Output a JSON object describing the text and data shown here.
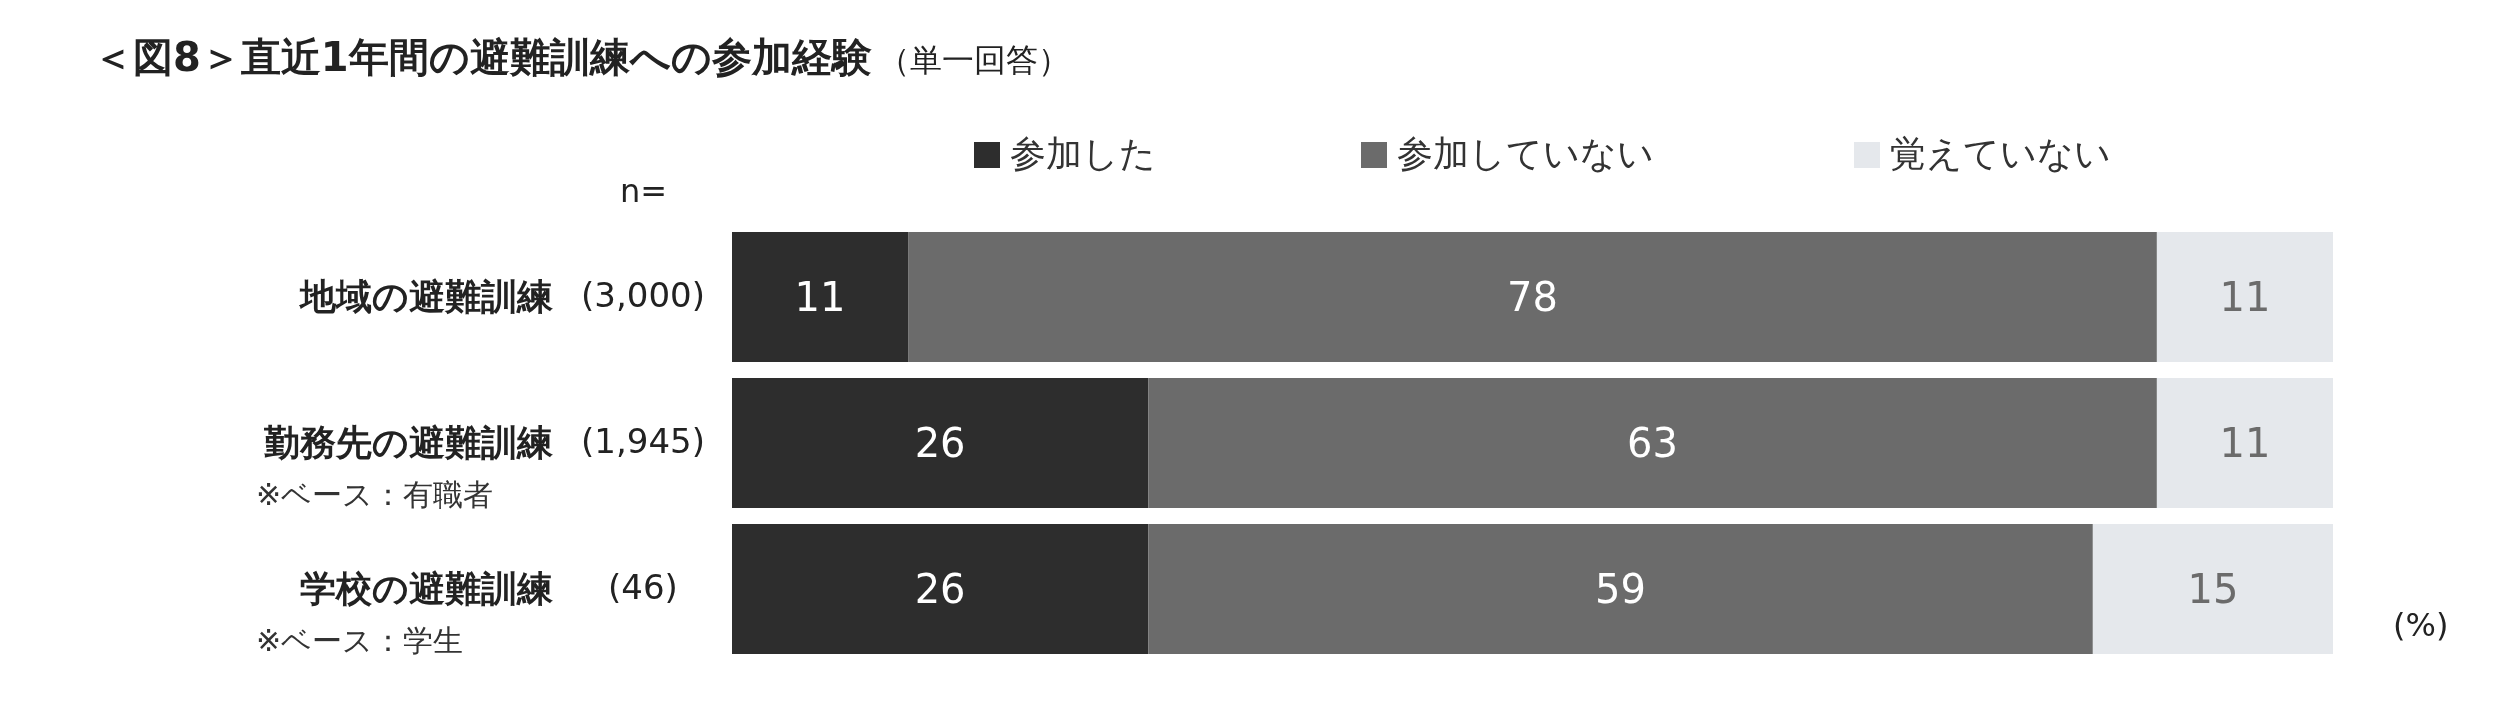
{
  "chart_data": {
    "type": "bar",
    "orientation": "horizontal",
    "stacked": true,
    "title": "＜図8＞直近1年間の避難訓練への参加経験",
    "subtitle": "（単一回答）",
    "categories": [
      "地域の避難訓練",
      "勤務先の避難訓練",
      "学校の避難訓練"
    ],
    "series": [
      {
        "name": "参加した",
        "color": "#2d2d2d",
        "values": [
          11,
          26,
          26
        ]
      },
      {
        "name": "参加していない",
        "color": "#6b6b6b",
        "values": [
          78,
          63,
          59
        ]
      },
      {
        "name": "覚えていない",
        "color": "#e5e8ec",
        "values": [
          11,
          11,
          15
        ]
      }
    ],
    "annotations": [
      "n=",
      "(3,000)",
      "(1,945)",
      "(46)",
      "※ベース：有職者",
      "※ベース：学生",
      "(%)"
    ],
    "data_labels": true,
    "legend": "top",
    "grid": false
  }
}
